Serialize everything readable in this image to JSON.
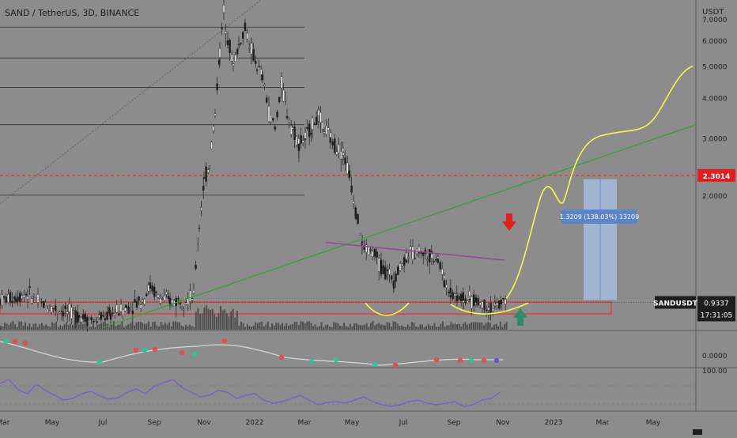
{
  "header": {
    "symbol_title": "SAND / TetherUS, 3D, BINANCE",
    "axis_unit": "USDT"
  },
  "chart_data": {
    "type": "candlestick",
    "title": "SAND / TetherUS, 3D, BINANCE",
    "ylabel": "USDT",
    "y_scale": "log",
    "ylim": [
      0.8,
      8.0
    ],
    "grid": false,
    "y_ticks": [
      "7.0000",
      "6.0000",
      "5.0000",
      "4.0000",
      "3.0000",
      "2.0000",
      "0.0000",
      "100.00"
    ],
    "x_ticks": [
      "Mar",
      "May",
      "Jul",
      "Sep",
      "Nov",
      "2022",
      "Mar",
      "May",
      "Jul",
      "Sep",
      "Nov",
      "2023",
      "Mar",
      "May"
    ],
    "last_price": {
      "label": "SANDUSDT",
      "value": "0.9337",
      "countdown": "17:31:05"
    },
    "resistance": {
      "value": "2.3014",
      "color": "#ff2a2a"
    },
    "measure_label": "1.3209 (138.03%) 13209",
    "series": [
      {
        "name": "price",
        "x": [
          "2021-03",
          "2021-05",
          "2021-07",
          "2021-09",
          "2021-10",
          "2021-11",
          "2021-12",
          "2022-01",
          "2022-02",
          "2022-03",
          "2022-04",
          "2022-05",
          "2022-06",
          "2022-07",
          "2022-08",
          "2022-09",
          "2022-10",
          "2022-11"
        ],
        "close": [
          0.95,
          0.85,
          0.78,
          0.95,
          0.93,
          6.9,
          5.5,
          4.6,
          3.1,
          3.7,
          3.0,
          1.4,
          1.2,
          1.3,
          1.35,
          1.0,
          0.88,
          0.93
        ]
      }
    ],
    "horizontal_levels": [
      6.6,
      5.3,
      4.3,
      3.3,
      2.0
    ],
    "colors": {
      "up": "#1e1e1e",
      "down": "#1e1e1e",
      "trend": "#22aa22",
      "projection": "#ffff44",
      "indicator_line": "#d8d8d8",
      "rsi": "#7d55d9",
      "measure_box": "#aac4e8",
      "support_zone": "#ff2a2a",
      "wedge": "#a040a0",
      "arrow_down": "#e02020",
      "arrow_up": "#2e8b6e"
    }
  }
}
